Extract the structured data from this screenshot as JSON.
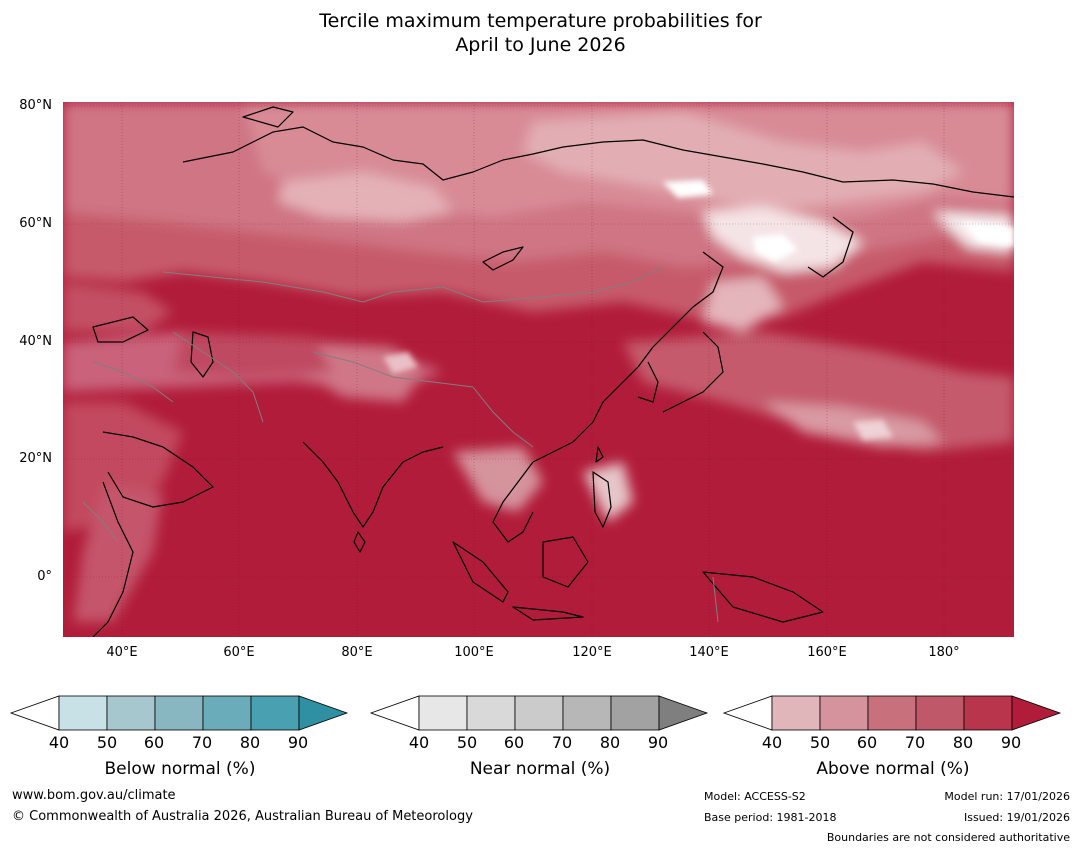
{
  "title": {
    "line1": "Tercile maximum temperature probabilities for",
    "line2": "April to June 2026"
  },
  "map": {
    "lat_labels": [
      "80°N",
      "60°N",
      "40°N",
      "20°N",
      "0°"
    ],
    "lon_labels": [
      "40°E",
      "60°E",
      "80°E",
      "100°E",
      "120°E",
      "140°E",
      "160°E",
      "180°"
    ],
    "palette": {
      "above_90": "#b11c3a",
      "above_80": "#bb3a52",
      "above_70": "#c75e6e",
      "above_60": "#d6868f",
      "above_50": "#e1adb3",
      "above_40": "#ffffff",
      "coast": "#000000",
      "borders": "#7f7f7f"
    }
  },
  "colorbars": [
    {
      "key": "below",
      "title": "Below normal (%)",
      "ticks": [
        "40",
        "50",
        "60",
        "70",
        "80",
        "90"
      ],
      "colors": [
        "#ffffff",
        "#c8e1e7",
        "#a6c7cd",
        "#89b7c1",
        "#6aacba",
        "#48a0b1",
        "#2f8fa3"
      ]
    },
    {
      "key": "near",
      "title": "Near normal (%)",
      "ticks": [
        "40",
        "50",
        "60",
        "70",
        "80",
        "90"
      ],
      "colors": [
        "#ffffff",
        "#e7e7e7",
        "#d9d9d9",
        "#cbcbcb",
        "#b7b7b7",
        "#a2a2a2",
        "#7f7f7f"
      ]
    },
    {
      "key": "above",
      "title": "Above normal (%)",
      "ticks": [
        "40",
        "50",
        "60",
        "70",
        "80",
        "90"
      ],
      "colors": [
        "#ffffff",
        "#e1b6bb",
        "#d5949d",
        "#c8717d",
        "#bf5868",
        "#b9354b",
        "#b11c3a"
      ]
    }
  ],
  "footer": {
    "url": "www.bom.gov.au/climate",
    "copyright": "© Commonwealth of Australia 2026, Australian Bureau of Meteorology",
    "model": "Model: ACCESS-S2",
    "base_period": "Base period: 1981-2018",
    "model_run": "Model run: 17/01/2026",
    "issued": "Issued: 19/01/2026",
    "disclaimer": "Boundaries are not considered authoritative"
  }
}
